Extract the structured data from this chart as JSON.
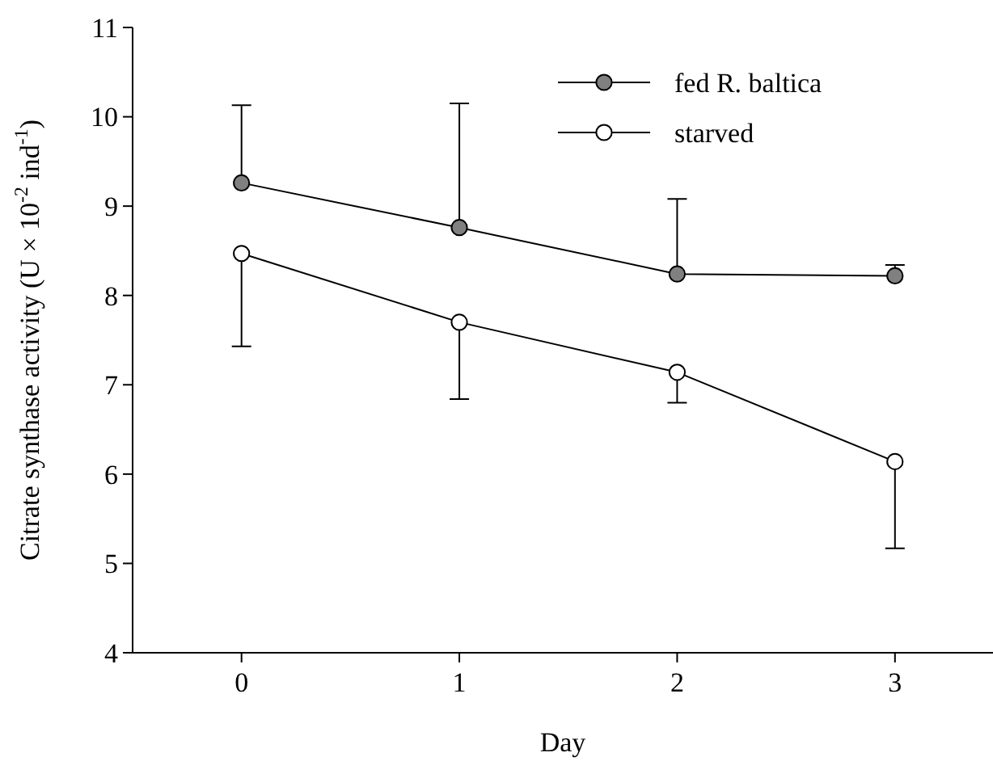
{
  "chart_data": {
    "type": "line",
    "xlabel": "Day",
    "ylabel": "Citrate synthase activity (U × 10$^{-2}$ ind$^{-1}$)",
    "x": [
      0,
      1,
      2,
      3
    ],
    "series": [
      {
        "name": "fed R. baltica",
        "color": "#808080",
        "values": [
          9.26,
          8.76,
          8.24,
          8.22
        ],
        "errors": [
          [
            9.26,
            10.13
          ],
          [
            8.76,
            10.15
          ],
          [
            8.24,
            9.08
          ],
          [
            8.22,
            8.34
          ]
        ]
      },
      {
        "name": "starved",
        "color": "#ffffff",
        "values": [
          8.47,
          7.7,
          7.14,
          6.14
        ],
        "errors": [
          [
            7.43,
            8.47
          ],
          [
            6.84,
            7.7
          ],
          [
            6.8,
            7.14
          ],
          [
            5.17,
            6.14
          ]
        ]
      }
    ],
    "xlim": [
      -0.5,
      3.45
    ],
    "ylim": [
      4,
      11
    ],
    "xticks": [
      0,
      1,
      2,
      3
    ],
    "yticks": [
      4,
      5,
      6,
      7,
      8,
      9,
      10,
      11
    ],
    "legend": "top right",
    "marker": "circle",
    "line_style": "solid",
    "grid": false
  }
}
